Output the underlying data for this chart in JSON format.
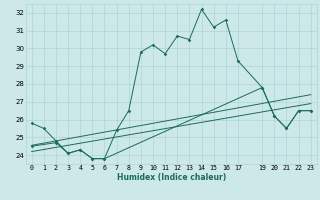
{
  "xlabel": "Humidex (Indice chaleur)",
  "bg_color": "#cce8e8",
  "grid_color": "#aed4d4",
  "line_color": "#1a6b5a",
  "xlim": [
    -0.5,
    23.5
  ],
  "ylim": [
    23.5,
    32.5
  ],
  "ytick_labels": [
    "24",
    "25",
    "26",
    "27",
    "28",
    "29",
    "30",
    "31",
    "32"
  ],
  "ytick_vals": [
    24,
    25,
    26,
    27,
    28,
    29,
    30,
    31,
    32
  ],
  "xtick_vals": [
    0,
    1,
    2,
    3,
    4,
    5,
    6,
    7,
    8,
    9,
    10,
    11,
    12,
    13,
    14,
    15,
    16,
    17,
    19,
    20,
    21,
    22,
    23
  ],
  "xtick_labels": [
    "0",
    "1",
    "2",
    "3",
    "4",
    "5",
    "6",
    "7",
    "8",
    "9",
    "10",
    "11",
    "12",
    "13",
    "14",
    "15",
    "16",
    "17",
    "19",
    "20",
    "21",
    "22",
    "23"
  ],
  "series1_x": [
    0,
    1,
    2,
    3,
    4,
    5,
    6,
    7,
    8,
    9,
    10,
    11,
    12,
    13,
    14,
    15,
    16,
    17,
    19,
    20,
    21,
    22,
    23
  ],
  "series1_y": [
    25.8,
    25.5,
    24.8,
    24.1,
    24.3,
    23.8,
    23.8,
    25.4,
    26.5,
    29.8,
    30.2,
    29.7,
    30.7,
    30.5,
    32.2,
    31.2,
    31.6,
    29.3,
    27.8,
    26.2,
    25.5,
    26.5,
    26.5
  ],
  "series2_x": [
    0,
    2,
    3,
    4,
    5,
    6,
    19,
    20,
    21,
    22,
    23
  ],
  "series2_y": [
    24.5,
    24.7,
    24.1,
    24.3,
    23.8,
    23.8,
    27.8,
    26.2,
    25.5,
    26.5,
    26.5
  ],
  "series3_x": [
    0,
    23
  ],
  "series3_y": [
    24.2,
    26.9
  ],
  "series4_x": [
    0,
    23
  ],
  "series4_y": [
    24.55,
    27.4
  ],
  "xlabel_fontsize": 5.5,
  "tick_fontsize": 4.8
}
